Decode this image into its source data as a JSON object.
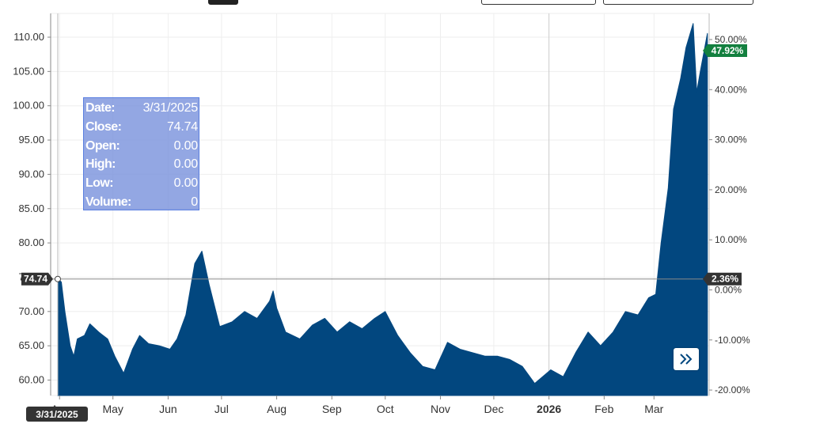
{
  "controls": {
    "expand_icon": "double-chevron-right-icon"
  },
  "tooltip": {
    "rows": [
      {
        "key": "Date:",
        "value": "3/31/2025"
      },
      {
        "key": "Close:",
        "value": "74.74"
      },
      {
        "key": "Open:",
        "value": "0.00"
      },
      {
        "key": "High:",
        "value": "0.00"
      },
      {
        "key": "Low:",
        "value": "0.00"
      },
      {
        "key": "Volume:",
        "value": "0"
      }
    ]
  },
  "badges": {
    "crosshair_price": "74.74",
    "crosshair_date": "3/31/2025",
    "crosshair_pct": "2.36%",
    "last_pct": "47.92%"
  },
  "colors": {
    "area_fill": "#02477f",
    "last_badge": "#13803f",
    "crosshair_badge": "#333333",
    "tooltip_bg": "#7891dc"
  },
  "chart_data": {
    "type": "area",
    "title": "",
    "xlabel": "",
    "ylabel": "",
    "ylim": [
      58.0,
      112.5
    ],
    "y_ticks": [
      "60.00",
      "65.00",
      "70.00",
      "75.00",
      "80.00",
      "85.00",
      "90.00",
      "95.00",
      "100.00",
      "105.00",
      "110.00"
    ],
    "y2_ticks": [
      "-20.00%",
      "-10.00%",
      "0.00%",
      "10.00%",
      "20.00%",
      "30.00%",
      "40.00%",
      "50.00%"
    ],
    "x_ticks": [
      "Apr",
      "May",
      "Jun",
      "Jul",
      "Aug",
      "Sep",
      "Oct",
      "Nov",
      "Dec",
      "2026",
      "Feb",
      "Mar"
    ],
    "grid": true,
    "series": [
      {
        "x": [
          "2025-03-31",
          "2025-04-02",
          "2025-04-04",
          "2025-04-07",
          "2025-04-09",
          "2025-04-11",
          "2025-04-15",
          "2025-04-18",
          "2025-04-23",
          "2025-04-28",
          "2025-05-02",
          "2025-05-07",
          "2025-05-12",
          "2025-05-16",
          "2025-05-21",
          "2025-05-27",
          "2025-06-02",
          "2025-06-06",
          "2025-06-11",
          "2025-06-16",
          "2025-06-20",
          "2025-06-24",
          "2025-06-30",
          "2025-07-07",
          "2025-07-14",
          "2025-07-21",
          "2025-07-28",
          "2025-07-30",
          "2025-08-01",
          "2025-08-06",
          "2025-08-14",
          "2025-08-21",
          "2025-08-28",
          "2025-09-04",
          "2025-09-11",
          "2025-09-18",
          "2025-09-25",
          "2025-10-01",
          "2025-10-08",
          "2025-10-15",
          "2025-10-22",
          "2025-10-29",
          "2025-11-05",
          "2025-11-12",
          "2025-11-19",
          "2025-11-26",
          "2025-12-03",
          "2025-12-10",
          "2025-12-17",
          "2025-12-24",
          "2026-01-02",
          "2026-01-09",
          "2026-01-16",
          "2026-01-23",
          "2026-01-30",
          "2026-02-06",
          "2026-02-13",
          "2026-02-20",
          "2026-02-26",
          "2026-03-02",
          "2026-03-05",
          "2026-03-09",
          "2026-03-12",
          "2026-03-16",
          "2026-03-19",
          "2026-03-23",
          "2026-03-25",
          "2026-03-27",
          "2026-03-31"
        ],
        "values": [
          74.74,
          74.3,
          70.0,
          65.0,
          63.5,
          66.0,
          66.5,
          68.2,
          67.0,
          66.0,
          63.5,
          61.0,
          64.5,
          66.5,
          65.3,
          65.0,
          64.5,
          66.0,
          69.5,
          77.0,
          78.8,
          74.0,
          67.8,
          68.5,
          70.0,
          69.0,
          71.5,
          73.0,
          70.5,
          67.0,
          66.0,
          68.0,
          69.0,
          67.0,
          68.5,
          67.5,
          69.0,
          70.0,
          66.5,
          64.0,
          62.0,
          61.5,
          65.5,
          64.5,
          64.0,
          63.5,
          63.5,
          63.0,
          62.0,
          59.5,
          61.5,
          60.5,
          64.0,
          67.0,
          65.0,
          67.0,
          70.0,
          69.5,
          72.0,
          72.5,
          80.0,
          88.0,
          99.5,
          104.0,
          108.5,
          112.0,
          102.0,
          105.0,
          110.55
        ]
      }
    ]
  }
}
